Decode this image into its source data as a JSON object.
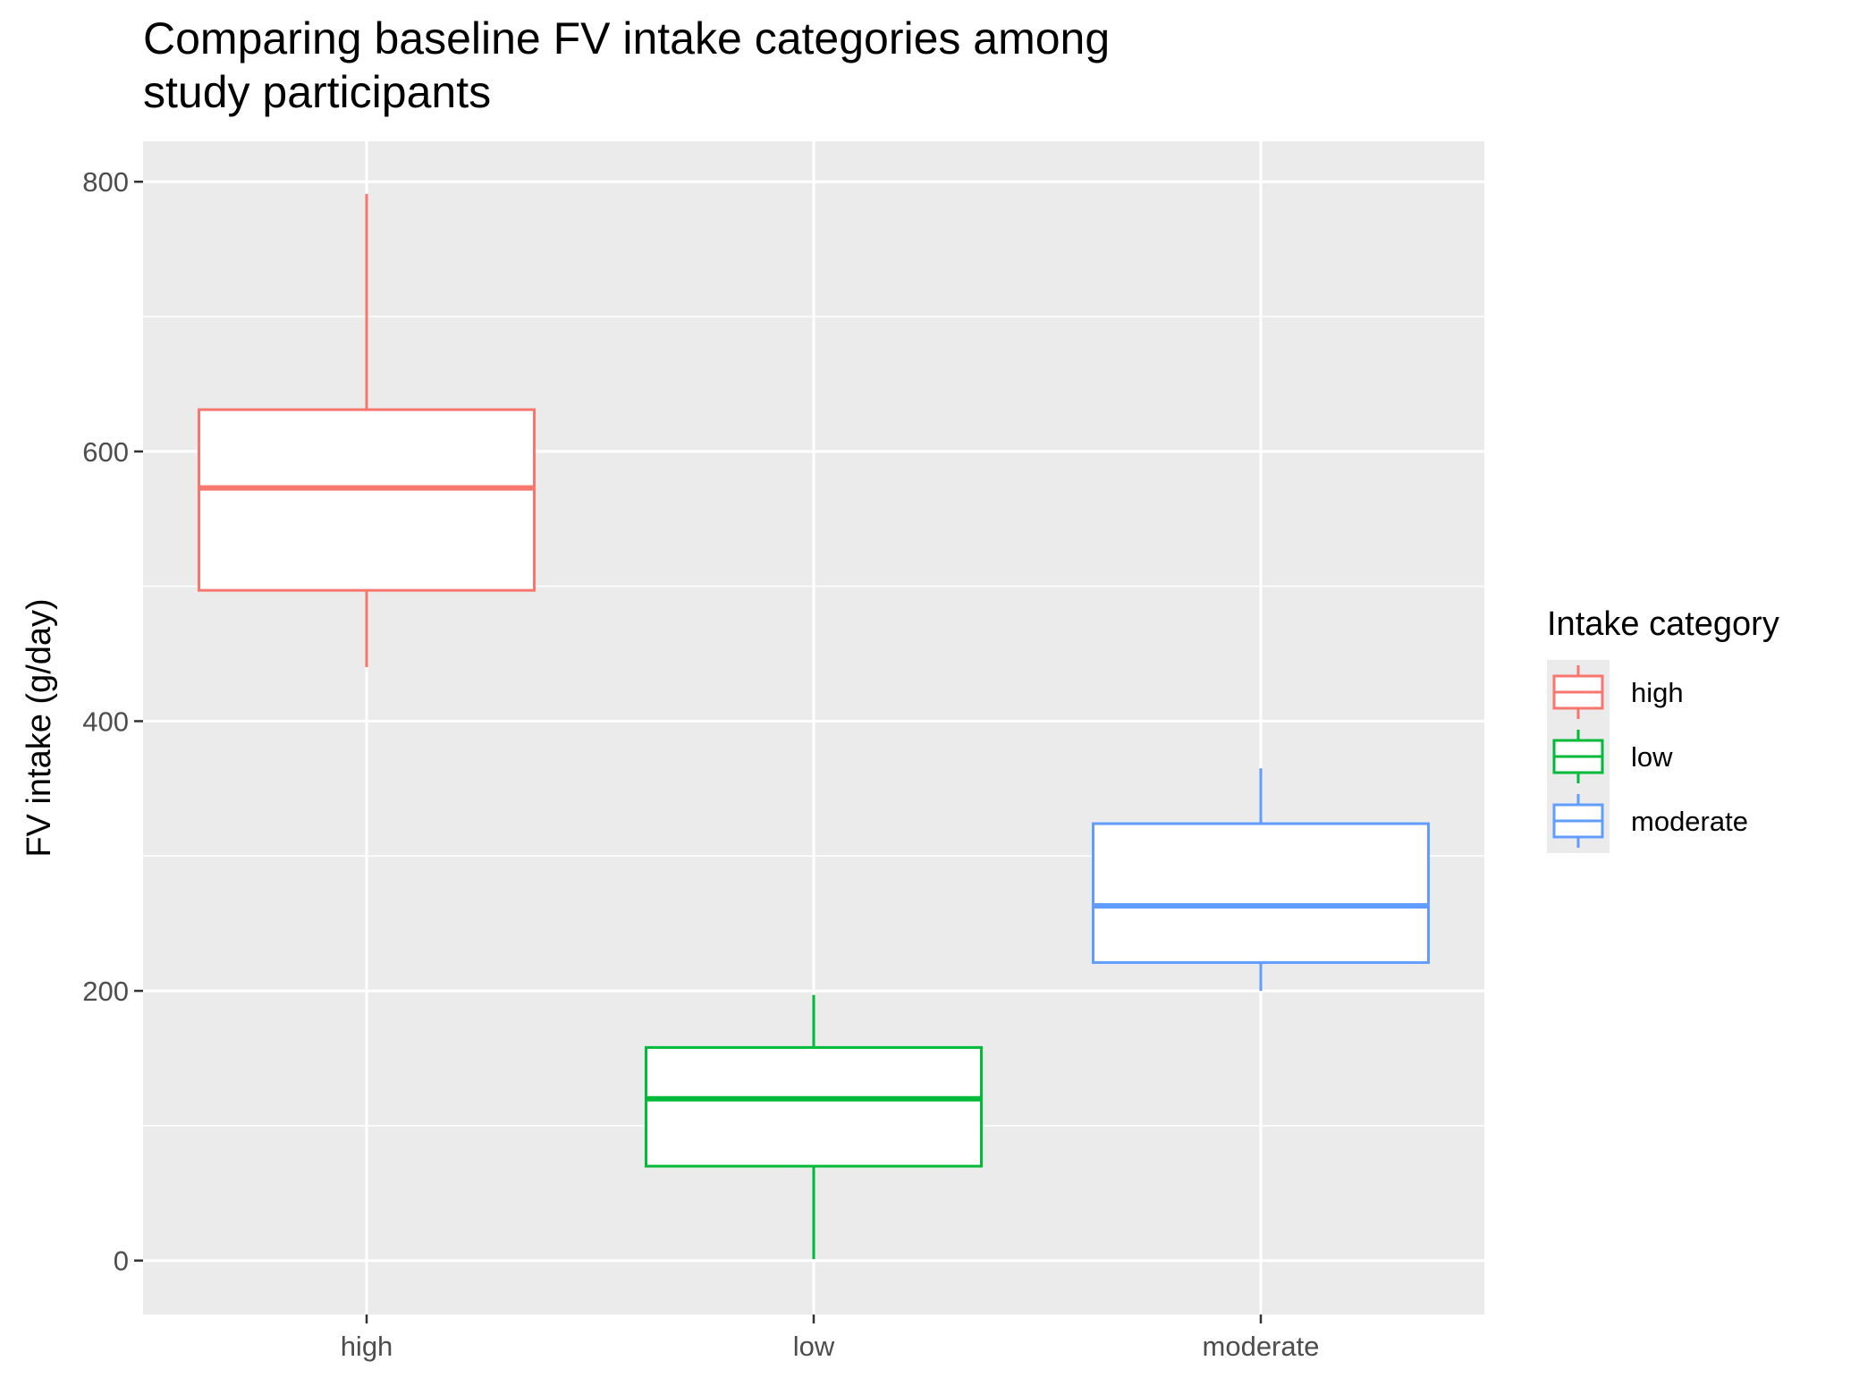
{
  "chart_data": {
    "type": "boxplot",
    "title_lines": [
      "Comparing baseline FV intake categories among",
      "study participants"
    ],
    "xlabel": "",
    "ylabel": "FV intake (g/day)",
    "ylim": [
      -40,
      830
    ],
    "y_ticks": [
      0,
      200,
      400,
      600,
      800
    ],
    "y_minor_ticks": [
      100,
      300,
      500,
      700
    ],
    "categories": [
      "high",
      "low",
      "moderate"
    ],
    "series": [
      {
        "category": "high",
        "whisker_low": 440,
        "q1": 497,
        "median": 573,
        "q3": 631,
        "whisker_high": 791,
        "color": "#F8766D"
      },
      {
        "category": "low",
        "whisker_low": 1,
        "q1": 70,
        "median": 120,
        "q3": 158,
        "whisker_high": 197,
        "color": "#00BA38"
      },
      {
        "category": "moderate",
        "whisker_low": 200,
        "q1": 221,
        "median": 263,
        "q3": 324,
        "whisker_high": 365,
        "color": "#619CFF"
      }
    ],
    "grid": true,
    "panel_background": "#EBEBEB",
    "legend": {
      "title": "Intake category",
      "position": "right",
      "entries": [
        "high",
        "low",
        "moderate"
      ]
    }
  }
}
